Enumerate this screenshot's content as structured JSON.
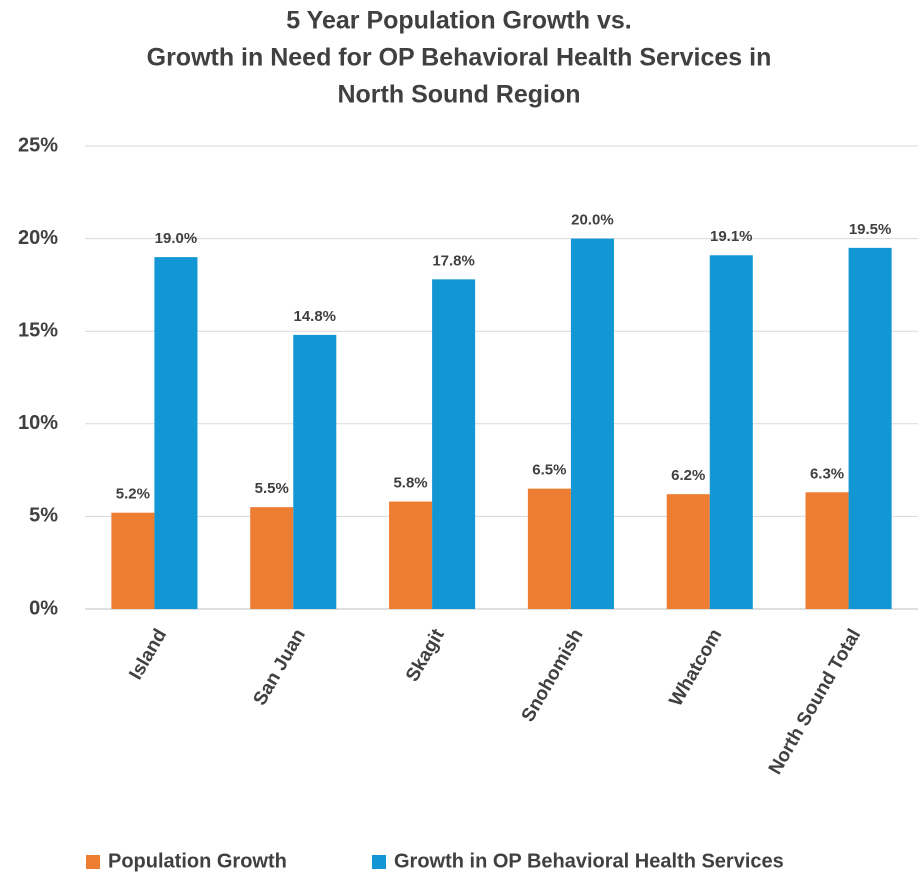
{
  "chart_data": {
    "type": "bar",
    "title": [
      "5 Year Population Growth vs.",
      "Growth in Need for OP Behavioral Health Services  in",
      "North Sound Region"
    ],
    "categories": [
      "Island",
      "San Juan",
      "Skagit",
      "Snohomish",
      "Whatcom",
      "North Sound Total"
    ],
    "series": [
      {
        "name": "Population Growth",
        "color": "#ed7d31",
        "values": [
          5.2,
          5.5,
          5.8,
          6.5,
          6.2,
          6.3
        ],
        "value_labels": [
          "5.2%",
          "5.5%",
          "5.8%",
          "6.5%",
          "6.2%",
          "6.3%"
        ]
      },
      {
        "name": "Growth in OP Behavioral Health Services",
        "color": "#1296d4",
        "values": [
          19.0,
          14.8,
          17.8,
          20.0,
          19.1,
          19.5
        ],
        "value_labels": [
          "19.0%",
          "14.8%",
          "17.8%",
          "20.0%",
          "19.1%",
          "19.5%"
        ]
      }
    ],
    "ylim": [
      0,
      25
    ],
    "yticks": [
      {
        "value": 0,
        "label": "0%"
      },
      {
        "value": 5,
        "label": "5%"
      },
      {
        "value": 10,
        "label": "10%"
      },
      {
        "value": 15,
        "label": "15%"
      },
      {
        "value": 20,
        "label": "20%"
      },
      {
        "value": 25,
        "label": "25%"
      }
    ],
    "grid": true,
    "legend": "bottom"
  }
}
